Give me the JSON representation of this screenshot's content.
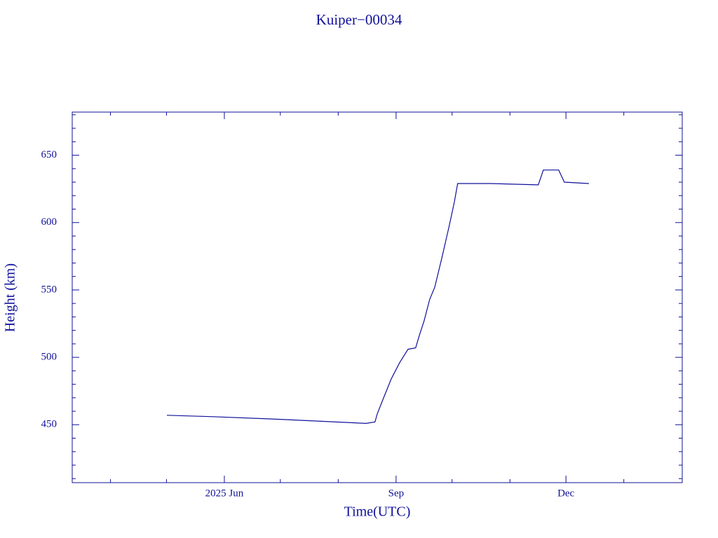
{
  "chart_data": {
    "type": "line",
    "title": "Kuiper−00034",
    "x_label": "Time(UTC)",
    "y_label": "Height (km)",
    "x": [
      121.2,
      144.5,
      182,
      227.9,
      232.7,
      233.9,
      237.6,
      241.4,
      245.9,
      250.4,
      254.5,
      256.4,
      259,
      262,
      264.7,
      268.4,
      272.2,
      275.2,
      277,
      294.7,
      320.2,
      322.9,
      331.1,
      334.1,
      347.3
    ],
    "series": [
      {
        "name": "Height",
        "color": "#10109a",
        "values": [
          457,
          456,
          454,
          451,
          452,
          458,
          471,
          484,
          496,
          506,
          507,
          516,
          527,
          543,
          552,
          573,
          596,
          615,
          629,
          629,
          628,
          639,
          639,
          630,
          629
        ]
      }
    ],
    "xlim": [
      70.5,
      397.3
    ],
    "xticks": [
      {
        "value": 152,
        "label": "2025 Jun"
      },
      {
        "value": 244,
        "label": "Sep"
      },
      {
        "value": 335,
        "label": "Dec"
      }
    ],
    "xminor_ticks": [
      91,
      121,
      182,
      213,
      274,
      305,
      366
    ],
    "ylim": [
      407,
      682
    ],
    "yticks": [
      450,
      500,
      550,
      600,
      650
    ],
    "yminor_ticks": [
      410,
      420,
      430,
      440,
      460,
      470,
      480,
      490,
      510,
      520,
      530,
      540,
      560,
      570,
      580,
      590,
      610,
      620,
      630,
      640,
      660,
      670,
      680
    ]
  }
}
